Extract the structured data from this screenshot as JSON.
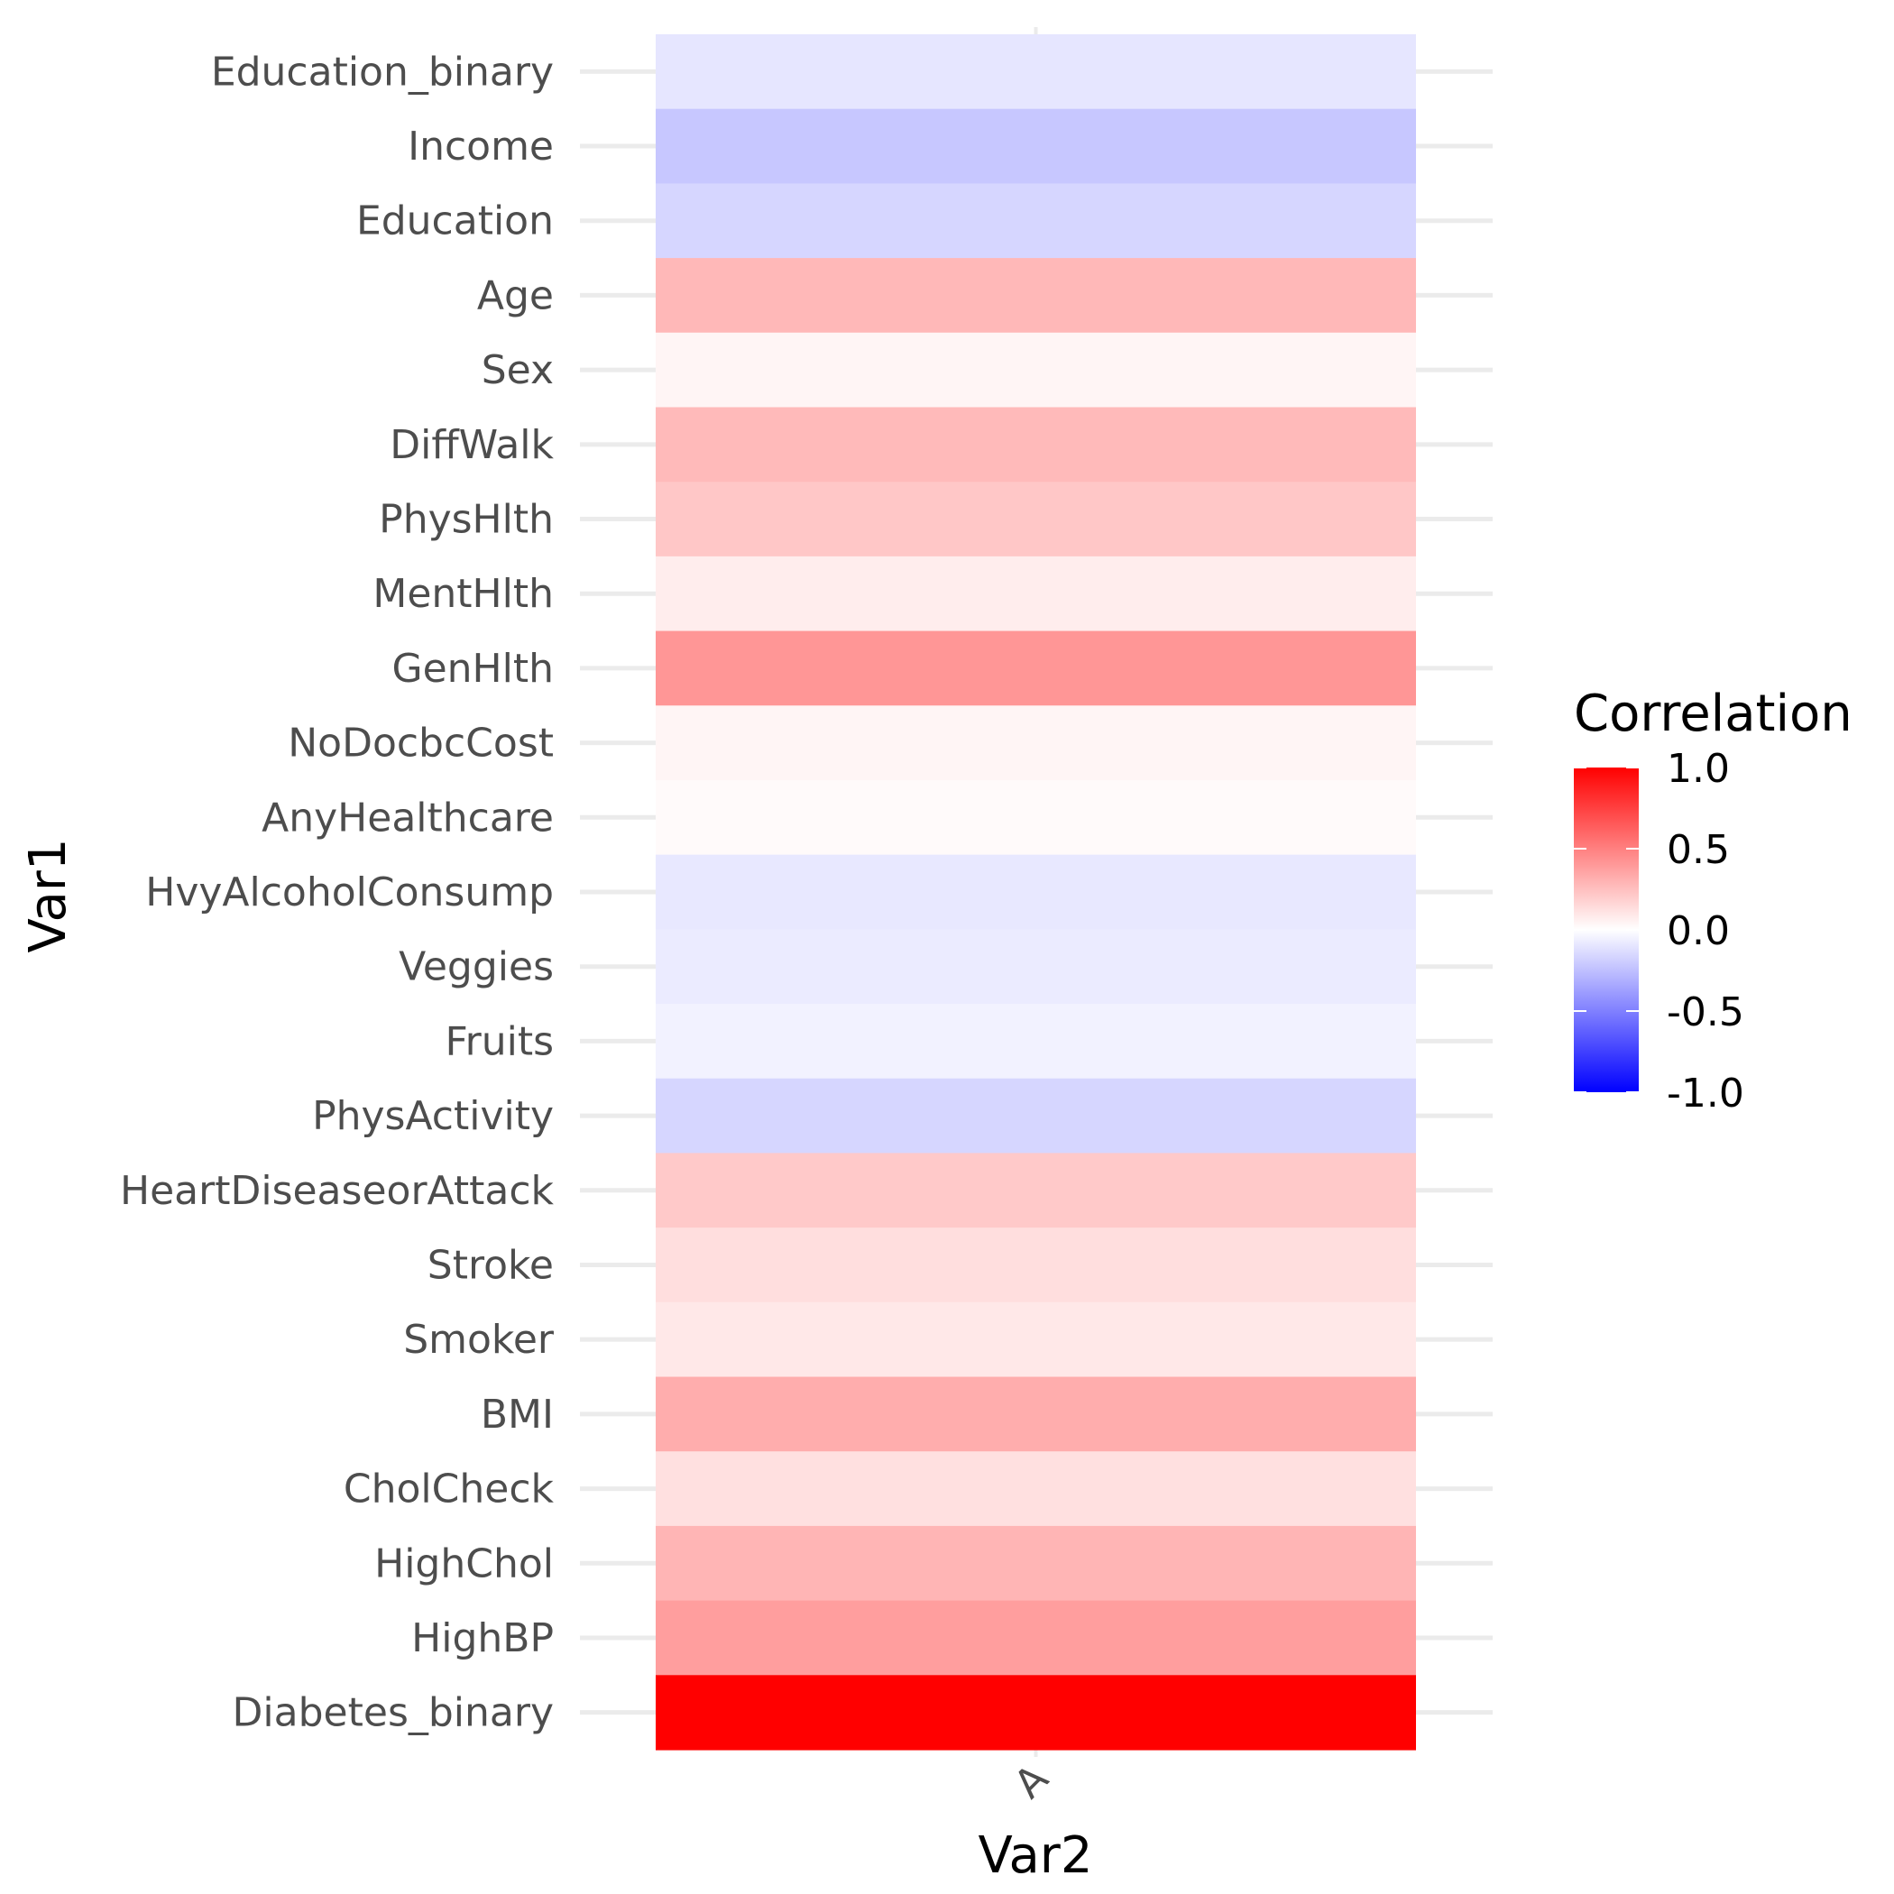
{
  "chart_data": {
    "type": "heatmap",
    "xlabel": "Var2",
    "ylabel": "Var1",
    "x_categories": [
      "A"
    ],
    "y_categories": [
      "Education_binary",
      "Income",
      "Education",
      "Age",
      "Sex",
      "DiffWalk",
      "PhysHlth",
      "MentHlth",
      "GenHlth",
      "NoDocbcCost",
      "AnyHealthcare",
      "HvyAlcoholConsump",
      "Veggies",
      "Fruits",
      "PhysActivity",
      "HeartDiseaseorAttack",
      "Stroke",
      "Smoker",
      "BMI",
      "CholCheck",
      "HighChol",
      "HighBP",
      "Diabetes_binary"
    ],
    "values": [
      -0.1,
      -0.22,
      -0.16,
      0.28,
      0.04,
      0.27,
      0.22,
      0.07,
      0.41,
      0.04,
      0.02,
      -0.09,
      -0.08,
      -0.05,
      -0.16,
      0.21,
      0.13,
      0.09,
      0.32,
      0.12,
      0.29,
      0.38,
      1.0
    ],
    "legend": {
      "title": "Correlation",
      "ticks": [
        "1.0",
        "0.5",
        "0.0",
        "-0.5",
        "-1.0"
      ],
      "tick_values": [
        1.0,
        0.5,
        0.0,
        -0.5,
        -1.0
      ],
      "position": "right"
    },
    "color_scale": {
      "low": "#0000ff",
      "mid": "#ffffff",
      "high": "#ff0000",
      "limits": [
        -1,
        1
      ]
    },
    "grid": true
  }
}
